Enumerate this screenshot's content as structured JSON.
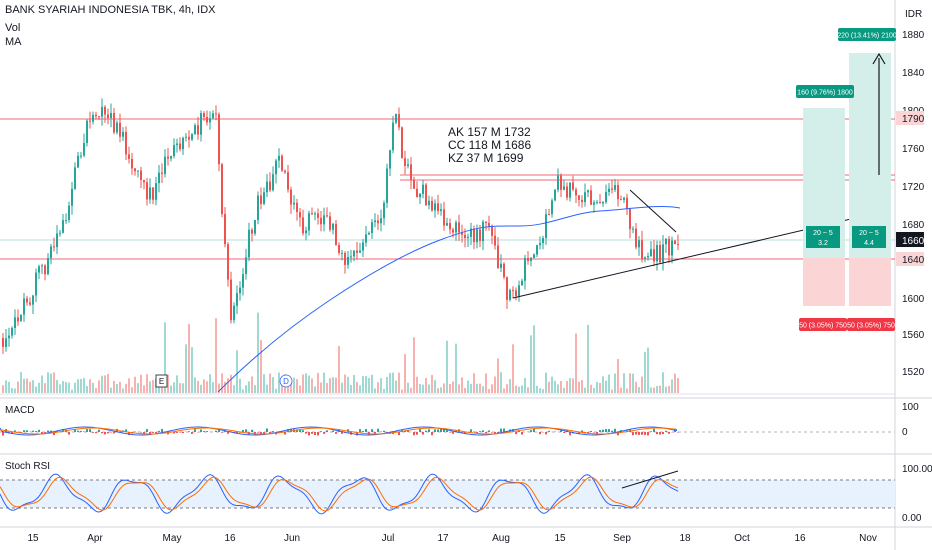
{
  "header": {
    "title": "BANK SYARIAH INDONESIA TBK, 4h, IDX",
    "vol_label": "Vol",
    "ma_label": "MA",
    "currency": "IDR"
  },
  "price_axis": {
    "ticks": [
      "1880",
      "1840",
      "1800",
      "1760",
      "1720",
      "1680",
      "1600",
      "1560",
      "1520"
    ],
    "current_price": "1660",
    "level_high": "1790",
    "level_low": "1640"
  },
  "annotation": {
    "lines": [
      "AK 157 M 1732",
      "CC 118 M 1686",
      "KZ 37 M 1699"
    ]
  },
  "targets": {
    "target1": "160 (9.76%) 1800",
    "target2": "220 (13.41%) 2100",
    "box1_top": "20 ~ 5",
    "box1_bot": "3.2",
    "box2_top": "20 ~ 5",
    "box2_bot": "4.4",
    "stop1": "50 (3.05%) 750",
    "stop2": "50 (3.05%) 750"
  },
  "events": {
    "earnings": "E",
    "dividend": "D"
  },
  "macd": {
    "label": "MACD",
    "ticks": [
      "100",
      "0"
    ]
  },
  "stoch": {
    "label": "Stoch RSI",
    "ticks": [
      "100.00",
      "0.00"
    ]
  },
  "time_axis": [
    "15",
    "Apr",
    "May",
    "16",
    "Jun",
    "Jul",
    "17",
    "Aug",
    "15",
    "Sep",
    "18",
    "Oct",
    "16",
    "Nov"
  ],
  "colors": {
    "up": "#26a69a",
    "down": "#ef5350",
    "ma": "#2962ff",
    "macd_line": "#2962ff",
    "signal_line": "#ff6d00",
    "level_line": "#f23645",
    "target_green": "#089981",
    "stop_red": "#f23645"
  }
}
